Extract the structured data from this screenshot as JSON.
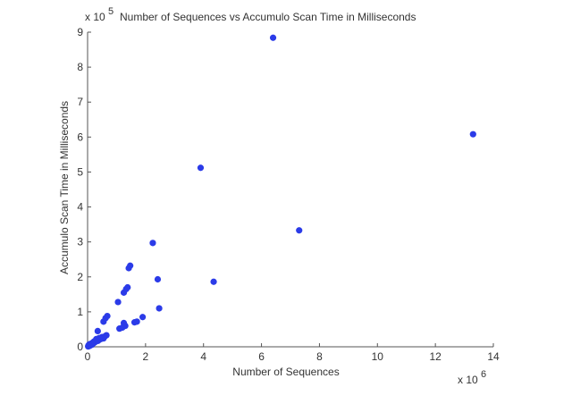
{
  "chart_data": {
    "type": "scatter",
    "title": "Number of Sequences vs Accumulo Scan Time in Milliseconds",
    "xlabel": "Number of Sequences",
    "ylabel": "Accumulo Scan Time in Milliseconds",
    "x_multiplier": "x 10",
    "x_exponent": "6",
    "y_multiplier": "x 10",
    "y_exponent": "5",
    "xlim": [
      0,
      14
    ],
    "ylim": [
      0,
      9
    ],
    "xticks": [
      0,
      2,
      4,
      6,
      8,
      10,
      12,
      14
    ],
    "yticks": [
      0,
      1,
      2,
      3,
      4,
      5,
      6,
      7,
      8,
      9
    ],
    "grid": false,
    "marker_color": "#2b3be8",
    "points": [
      [
        0.02,
        0.01
      ],
      [
        0.03,
        0.04
      ],
      [
        0.05,
        0.02
      ],
      [
        0.06,
        0.07
      ],
      [
        0.08,
        0.03
      ],
      [
        0.1,
        0.05
      ],
      [
        0.12,
        0.09
      ],
      [
        0.15,
        0.06
      ],
      [
        0.18,
        0.12
      ],
      [
        0.2,
        0.1
      ],
      [
        0.22,
        0.15
      ],
      [
        0.25,
        0.13
      ],
      [
        0.28,
        0.18
      ],
      [
        0.3,
        0.22
      ],
      [
        0.33,
        0.2
      ],
      [
        0.36,
        0.17
      ],
      [
        0.4,
        0.25
      ],
      [
        0.45,
        0.22
      ],
      [
        0.5,
        0.28
      ],
      [
        0.55,
        0.24
      ],
      [
        0.6,
        0.3
      ],
      [
        0.65,
        0.33
      ],
      [
        0.35,
        0.45
      ],
      [
        0.55,
        0.72
      ],
      [
        0.62,
        0.82
      ],
      [
        0.68,
        0.88
      ],
      [
        1.05,
        1.28
      ],
      [
        1.1,
        0.52
      ],
      [
        1.2,
        0.55
      ],
      [
        1.25,
        0.68
      ],
      [
        1.3,
        0.6
      ],
      [
        1.25,
        1.55
      ],
      [
        1.33,
        1.65
      ],
      [
        1.38,
        1.7
      ],
      [
        1.42,
        2.25
      ],
      [
        1.47,
        2.32
      ],
      [
        1.62,
        0.7
      ],
      [
        1.7,
        0.72
      ],
      [
        1.9,
        0.85
      ],
      [
        2.25,
        2.97
      ],
      [
        2.42,
        1.93
      ],
      [
        2.47,
        1.1
      ],
      [
        3.9,
        5.12
      ],
      [
        4.35,
        1.86
      ],
      [
        6.4,
        8.84
      ],
      [
        7.3,
        3.33
      ],
      [
        13.3,
        6.08
      ]
    ]
  }
}
